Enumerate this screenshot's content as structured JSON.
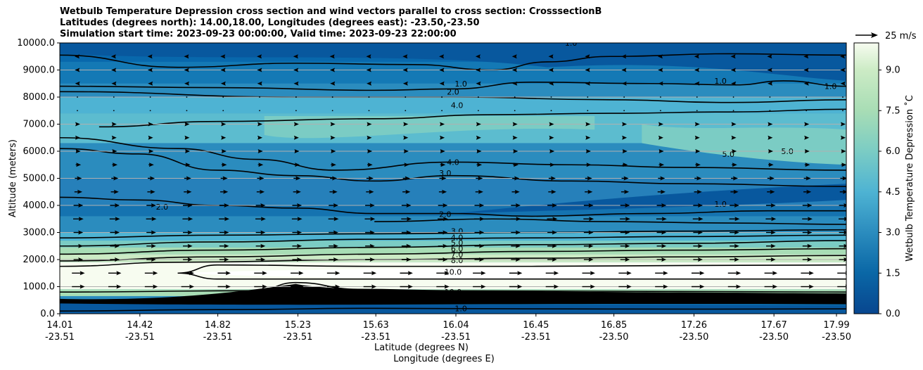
{
  "chart_data": {
    "type": "contourf",
    "title_lines": [
      "Wetbulb Temperature Depression cross section and wind vectors parallel to cross section: CrosssectionB",
      "Latitudes (degrees north): 14.00,18.00, Longitudes (degrees east): -23.50,-23.50",
      "Simulation start time: 2023-09-23 00:00:00, Valid time: 2023-09-23 22:00:00"
    ],
    "ylabel": "Altitude (meters)",
    "xlabel_lat": "Latitude (degrees N)",
    "xlabel_lon": "Longitude (degrees E)",
    "ylim": [
      0,
      10000
    ],
    "y_ticks": [
      "0.0",
      "1000.0",
      "2000.0",
      "3000.0",
      "4000.0",
      "5000.0",
      "6000.0",
      "7000.0",
      "8000.0",
      "9000.0",
      "10000.0"
    ],
    "x_ticks": [
      {
        "lat": "14.01",
        "lon": "-23.51",
        "pos": 0.0
      },
      {
        "lat": "14.42",
        "lon": "-23.51",
        "pos": 0.1018
      },
      {
        "lat": "14.82",
        "lon": "-23.51",
        "pos": 0.2009
      },
      {
        "lat": "15.23",
        "lon": "-23.51",
        "pos": 0.3027
      },
      {
        "lat": "15.63",
        "lon": "-23.51",
        "pos": 0.4018
      },
      {
        "lat": "16.04",
        "lon": "-23.51",
        "pos": 0.5036
      },
      {
        "lat": "16.45",
        "lon": "-23.51",
        "pos": 0.6054
      },
      {
        "lat": "16.85",
        "lon": "-23.50",
        "pos": 0.7045
      },
      {
        "lat": "17.26",
        "lon": "-23.50",
        "pos": 0.8063
      },
      {
        "lat": "17.67",
        "lon": "-23.50",
        "pos": 0.908
      },
      {
        "lat": "17.99",
        "lon": "-23.50",
        "pos": 0.9875
      }
    ],
    "colorbar": {
      "label": "Wetbulb Temperature Depression ˚C",
      "ticks": [
        "0.0",
        "1.5",
        "3.0",
        "4.5",
        "6.0",
        "7.5",
        "9.0"
      ],
      "range": [
        0,
        10
      ]
    },
    "wind_key": {
      "label": "25 m/s"
    },
    "contour_labels": [
      {
        "text": "1.0",
        "x": 0.51,
        "y": 200
      },
      {
        "text": "10.0",
        "x": 0.5,
        "y": 800
      },
      {
        "text": "10.0",
        "x": 0.5,
        "y": 1550
      },
      {
        "text": "8.0",
        "x": 0.505,
        "y": 1970
      },
      {
        "text": "7.0",
        "x": 0.505,
        "y": 2200
      },
      {
        "text": "6.0",
        "x": 0.505,
        "y": 2400
      },
      {
        "text": "5.0",
        "x": 0.505,
        "y": 2620
      },
      {
        "text": "4.0",
        "x": 0.505,
        "y": 2820
      },
      {
        "text": "3.0",
        "x": 0.505,
        "y": 3050
      },
      {
        "text": "2.0",
        "x": 0.49,
        "y": 3680
      },
      {
        "text": "2.0",
        "x": 0.13,
        "y": 3950
      },
      {
        "text": "1.0",
        "x": 0.84,
        "y": 4050
      },
      {
        "text": "3.0",
        "x": 0.49,
        "y": 5200
      },
      {
        "text": "4.0",
        "x": 0.5,
        "y": 5600
      },
      {
        "text": "5.0",
        "x": 0.85,
        "y": 5900
      },
      {
        "text": "5.0",
        "x": 0.925,
        "y": 6000
      },
      {
        "text": "4.0",
        "x": 0.505,
        "y": 7700
      },
      {
        "text": "2.0",
        "x": 0.5,
        "y": 8200
      },
      {
        "text": "1.0",
        "x": 0.51,
        "y": 8500
      },
      {
        "text": "1.0",
        "x": 0.84,
        "y": 8600
      },
      {
        "text": "1.0",
        "x": 0.98,
        "y": 8400
      },
      {
        "text": "1.0",
        "x": 0.65,
        "y": 10000
      }
    ],
    "wind_rows": [
      {
        "z": 1000,
        "speed": 13
      },
      {
        "z": 1500,
        "speed": 13
      },
      {
        "z": 2000,
        "speed": 9
      },
      {
        "z": 2500,
        "speed": 9
      },
      {
        "z": 3000,
        "speed": 9
      },
      {
        "z": 3500,
        "speed": 10
      },
      {
        "z": 4000,
        "speed": 9
      },
      {
        "z": 4500,
        "speed": 7
      },
      {
        "z": 5000,
        "speed": 6
      },
      {
        "z": 5500,
        "speed": 4
      },
      {
        "z": 6000,
        "speed": 3
      },
      {
        "z": 6500,
        "speed": 2
      },
      {
        "z": 7000,
        "speed": 2
      },
      {
        "z": 7500,
        "speed": 0.5
      },
      {
        "z": 8000,
        "speed": 0.5
      },
      {
        "z": 8500,
        "speed": -1
      },
      {
        "z": 9000,
        "speed": -1.5
      },
      {
        "z": 9500,
        "speed": -2
      }
    ]
  }
}
